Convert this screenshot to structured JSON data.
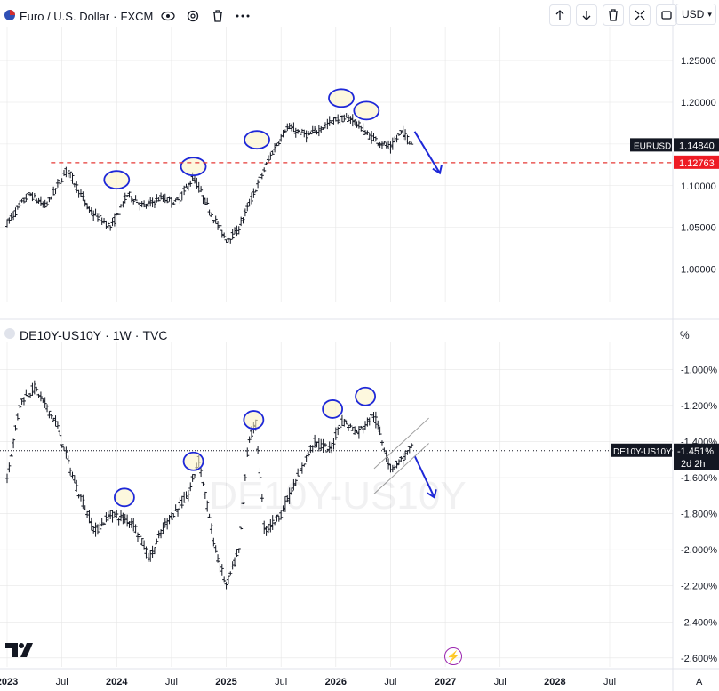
{
  "top_legend": {
    "flag_icon": "eu-us-flag-icon",
    "symbol": "Euro / U.S. Dollar",
    "exchange": "FXCM"
  },
  "currency_button": "USD",
  "bottom_legend": {
    "symbol": "DE10Y-US10Y",
    "interval": "1W",
    "exchange": "TVC",
    "watermark": "DE10Y-US10Y"
  },
  "bottom_scale_unit": "%",
  "toolbar_icons": [
    "arrow-up-icon",
    "arrow-down-icon",
    "trash-icon",
    "collapse-icon",
    "maximize-icon"
  ],
  "colors": {
    "price_bars": "#131722",
    "annotation": "#1e28d8",
    "annotation_fill": "#fbf3c8",
    "level_line": "#e53935",
    "grid": "#e6e6e6",
    "tag_dark": "#131722",
    "tag_red": "#ee1b24"
  },
  "chart_data": [
    {
      "type": "ohlc",
      "title": "EURUSD",
      "ylim": [
        0.96,
        1.28
      ],
      "y_ticks": [
        "1.25000",
        "1.20000",
        "1.15000",
        "1.10000",
        "1.05000",
        "1.00000"
      ],
      "y_tick_values": [
        1.25,
        1.2,
        1.15,
        1.1,
        1.05,
        1.0
      ],
      "last_price_label": "EURUSD",
      "last_price": "1.14840",
      "level_price": "1.12763",
      "anchors": [
        [
          2023.0,
          1.055
        ],
        [
          2023.2,
          1.09
        ],
        [
          2023.35,
          1.075
        ],
        [
          2023.55,
          1.12
        ],
        [
          2023.75,
          1.07
        ],
        [
          2023.95,
          1.05
        ],
        [
          2024.1,
          1.09
        ],
        [
          2024.25,
          1.075
        ],
        [
          2024.4,
          1.085
        ],
        [
          2024.55,
          1.08
        ],
        [
          2024.7,
          1.11
        ],
        [
          2024.85,
          1.07
        ],
        [
          2025.0,
          1.035
        ],
        [
          2025.1,
          1.045
        ],
        [
          2025.25,
          1.09
        ],
        [
          2025.4,
          1.135
        ],
        [
          2025.55,
          1.17
        ],
        [
          2025.75,
          1.16
        ],
        [
          2026.0,
          1.18
        ],
        [
          2026.15,
          1.18
        ],
        [
          2026.3,
          1.16
        ],
        [
          2026.5,
          1.145
        ],
        [
          2026.6,
          1.165
        ],
        [
          2026.7,
          1.15
        ]
      ],
      "circles": [
        [
          2024.0,
          1.107
        ],
        [
          2024.7,
          1.123
        ],
        [
          2025.28,
          1.155
        ],
        [
          2026.05,
          1.205
        ],
        [
          2026.28,
          1.19
        ]
      ],
      "forecast_arrow": [
        [
          2026.72,
          1.165
        ],
        [
          2026.95,
          1.115
        ]
      ]
    },
    {
      "type": "ohlc",
      "title": "DE10Y-US10Y",
      "ylim": [
        -2.65,
        -0.9
      ],
      "y_ticks": [
        "-1.000%",
        "-1.200%",
        "-1.400%",
        "-1.600%",
        "-1.800%",
        "-2.000%",
        "-2.200%",
        "-2.400%",
        "-2.600%"
      ],
      "y_tick_values": [
        -1.0,
        -1.2,
        -1.4,
        -1.6,
        -1.8,
        -2.0,
        -2.2,
        -2.4,
        -2.6
      ],
      "last_price_label": "DE10Y-US10Y",
      "last_price": "-1.451%",
      "countdown": "2d 2h",
      "anchors": [
        [
          2023.0,
          -1.6
        ],
        [
          2023.12,
          -1.18
        ],
        [
          2023.25,
          -1.1
        ],
        [
          2023.45,
          -1.3
        ],
        [
          2023.6,
          -1.6
        ],
        [
          2023.8,
          -1.9
        ],
        [
          2023.95,
          -1.8
        ],
        [
          2024.15,
          -1.85
        ],
        [
          2024.3,
          -2.05
        ],
        [
          2024.45,
          -1.85
        ],
        [
          2024.65,
          -1.7
        ],
        [
          2024.75,
          -1.5
        ],
        [
          2024.9,
          -2.0
        ],
        [
          2025.0,
          -2.2
        ],
        [
          2025.12,
          -2.0
        ],
        [
          2025.2,
          -1.4
        ],
        [
          2025.27,
          -1.3
        ],
        [
          2025.35,
          -1.9
        ],
        [
          2025.5,
          -1.8
        ],
        [
          2025.65,
          -1.6
        ],
        [
          2025.8,
          -1.4
        ],
        [
          2025.95,
          -1.45
        ],
        [
          2026.05,
          -1.28
        ],
        [
          2026.2,
          -1.35
        ],
        [
          2026.35,
          -1.25
        ],
        [
          2026.5,
          -1.55
        ],
        [
          2026.6,
          -1.5
        ],
        [
          2026.7,
          -1.43
        ]
      ],
      "circles": [
        [
          2024.07,
          -1.71
        ],
        [
          2024.7,
          -1.51
        ],
        [
          2025.25,
          -1.28
        ],
        [
          2025.97,
          -1.22
        ],
        [
          2026.27,
          -1.15
        ]
      ],
      "channel": [
        [
          [
            2026.35,
            -1.55
          ],
          [
            2026.85,
            -1.27
          ]
        ],
        [
          [
            2026.35,
            -1.69
          ],
          [
            2026.85,
            -1.41
          ]
        ]
      ],
      "forecast_arrow": [
        [
          2026.72,
          -1.48
        ],
        [
          2026.9,
          -1.71
        ]
      ]
    }
  ],
  "x_axis": {
    "labels": [
      "2023",
      "Jul",
      "2024",
      "Jul",
      "2025",
      "Jul",
      "2026",
      "Jul",
      "2027",
      "Jul",
      "2028",
      "Jul"
    ],
    "values": [
      2023.0,
      2023.5,
      2024.0,
      2024.5,
      2025.0,
      2025.5,
      2026.0,
      2026.5,
      2027.0,
      2027.5,
      2028.0,
      2028.5
    ],
    "corner_label": "A"
  }
}
